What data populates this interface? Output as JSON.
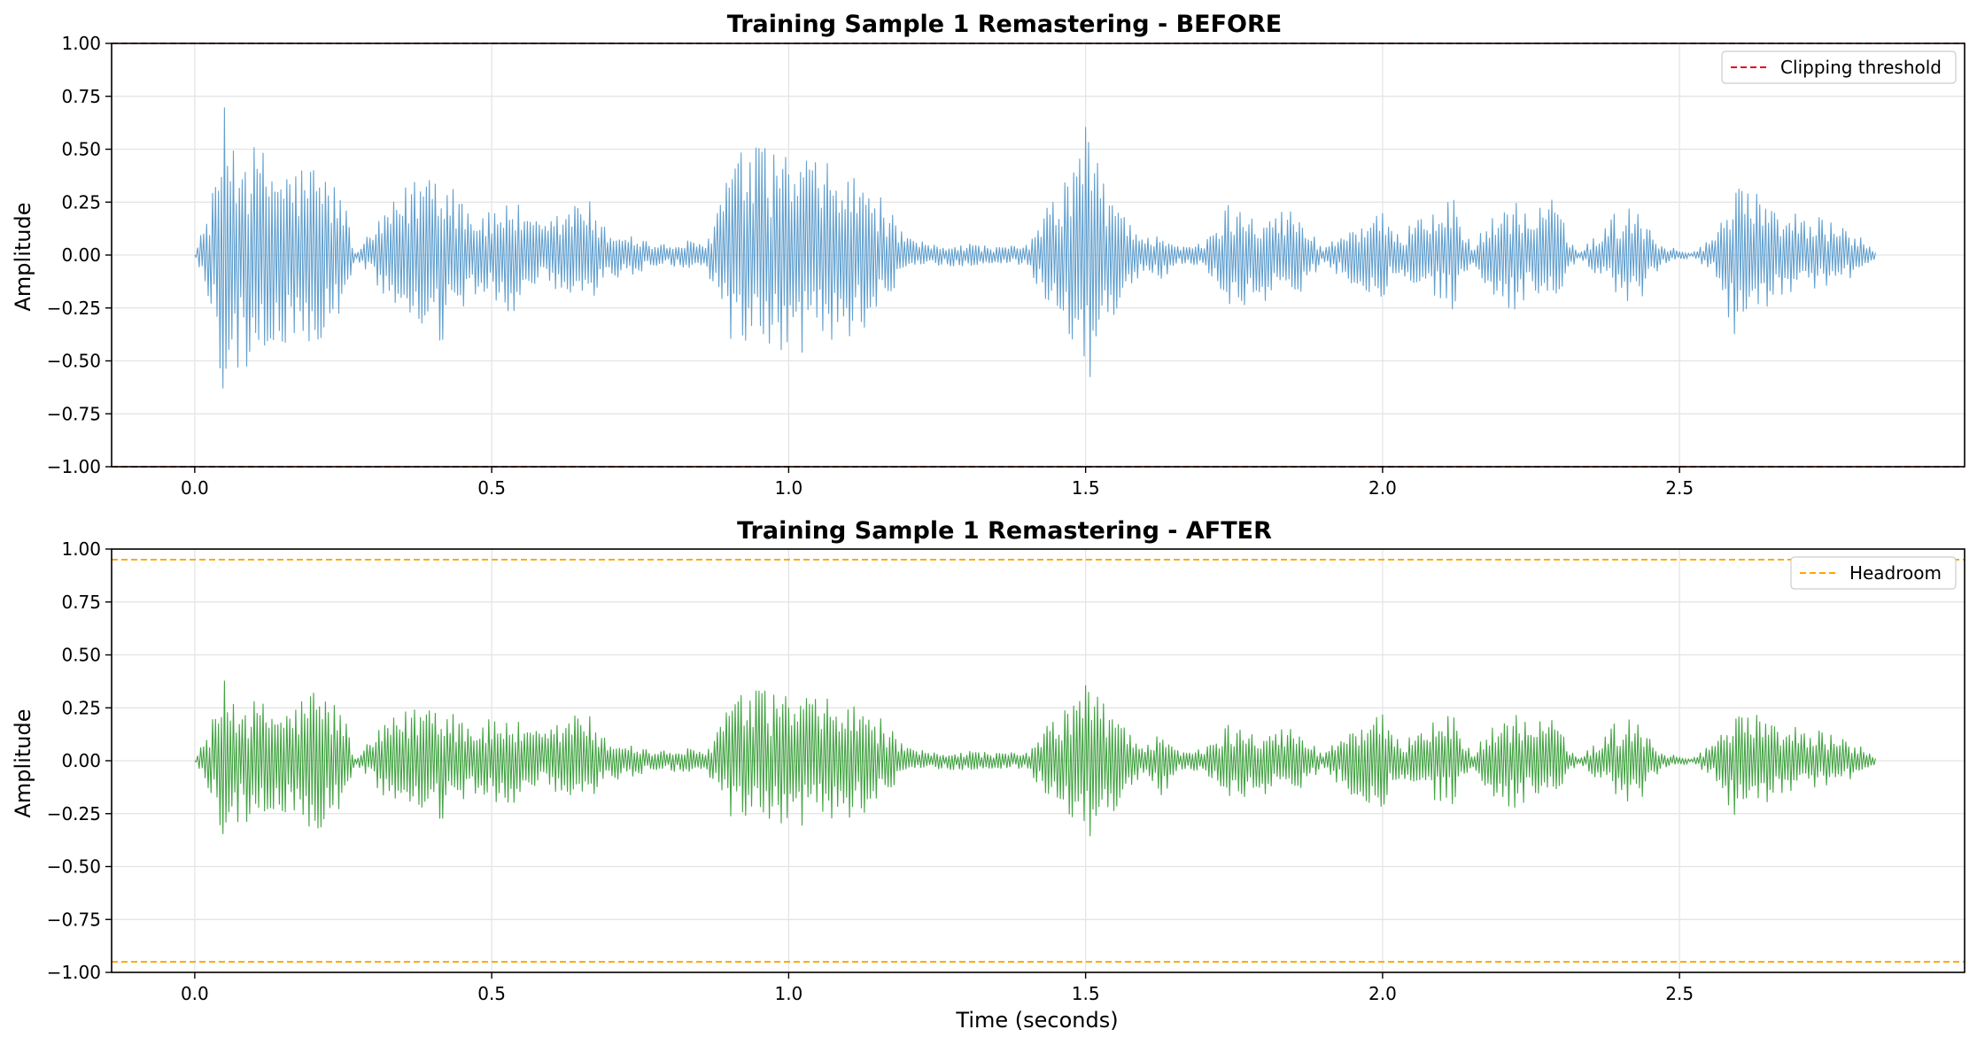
{
  "chart_data": [
    {
      "type": "line",
      "title": "Training Sample 1 Remastering - BEFORE",
      "xlabel": "",
      "ylabel": "Amplitude",
      "xlim": [
        -0.14,
        2.98
      ],
      "ylim": [
        -1.0,
        1.0
      ],
      "xticks": [
        0.0,
        0.5,
        1.0,
        1.5,
        2.0,
        2.5
      ],
      "xtick_labels": [
        "0.0",
        "0.5",
        "1.0",
        "1.5",
        "2.0",
        "2.5"
      ],
      "yticks": [
        -1.0,
        -0.75,
        -0.5,
        -0.25,
        0.0,
        0.25,
        0.5,
        0.75,
        1.0
      ],
      "ytick_labels": [
        "−1.00",
        "−0.75",
        "−0.50",
        "−0.25",
        "0.00",
        "0.25",
        "0.50",
        "0.75",
        "1.00"
      ],
      "grid": true,
      "legend_position": "top-right",
      "series": [
        {
          "kind": "waveform",
          "color": "#5b9bcb",
          "envelope_t": [
            0.0,
            0.03,
            0.05,
            0.08,
            0.12,
            0.16,
            0.2,
            0.25,
            0.27,
            0.32,
            0.36,
            0.4,
            0.44,
            0.47,
            0.5,
            0.53,
            0.56,
            0.59,
            0.62,
            0.64,
            0.66,
            0.68,
            0.71,
            0.74,
            0.77,
            0.8,
            0.83,
            0.86,
            0.9,
            0.92,
            0.95,
            1.0,
            1.05,
            1.1,
            1.15,
            1.2,
            1.25,
            1.3,
            1.35,
            1.4,
            1.45,
            1.48,
            1.5,
            1.53,
            1.56,
            1.6,
            1.63,
            1.66,
            1.7,
            1.74,
            1.8,
            1.85,
            1.9,
            1.95,
            2.0,
            2.03,
            2.06,
            2.09,
            2.12,
            2.15,
            2.19,
            2.22,
            2.25,
            2.28,
            2.33,
            2.39,
            2.43,
            2.47,
            2.52,
            2.56,
            2.6,
            2.64,
            2.68,
            2.72,
            2.76,
            2.8,
            2.83
          ],
          "envelope_amp": [
            0.0,
            0.3,
            0.7,
            0.55,
            0.5,
            0.42,
            0.45,
            0.3,
            0.01,
            0.2,
            0.35,
            0.48,
            0.35,
            0.22,
            0.2,
            0.3,
            0.18,
            0.15,
            0.22,
            0.26,
            0.3,
            0.15,
            0.12,
            0.1,
            0.06,
            0.05,
            0.07,
            0.05,
            0.45,
            0.5,
            0.52,
            0.5,
            0.45,
            0.4,
            0.3,
            0.08,
            0.05,
            0.06,
            0.04,
            0.05,
            0.3,
            0.45,
            0.68,
            0.35,
            0.25,
            0.08,
            0.12,
            0.04,
            0.06,
            0.25,
            0.22,
            0.22,
            0.04,
            0.15,
            0.2,
            0.08,
            0.25,
            0.2,
            0.28,
            0.05,
            0.2,
            0.28,
            0.18,
            0.3,
            0.01,
            0.2,
            0.25,
            0.05,
            0.01,
            0.1,
            0.45,
            0.25,
            0.22,
            0.2,
            0.15,
            0.1,
            0.02
          ],
          "sample_rate": 400
        }
      ],
      "reference_lines": [
        {
          "name": "Clipping threshold",
          "values": [
            1.0,
            -1.0
          ],
          "color": "#e8000b",
          "style": "dashed"
        }
      ]
    },
    {
      "type": "line",
      "title": "Training Sample 1 Remastering - AFTER",
      "xlabel": "Time (seconds)",
      "ylabel": "Amplitude",
      "xlim": [
        -0.14,
        2.98
      ],
      "ylim": [
        -1.0,
        1.0
      ],
      "xticks": [
        0.0,
        0.5,
        1.0,
        1.5,
        2.0,
        2.5
      ],
      "xtick_labels": [
        "0.0",
        "0.5",
        "1.0",
        "1.5",
        "2.0",
        "2.5"
      ],
      "yticks": [
        -1.0,
        -0.75,
        -0.5,
        -0.25,
        0.0,
        0.25,
        0.5,
        0.75,
        1.0
      ],
      "ytick_labels": [
        "−1.00",
        "−0.75",
        "−0.50",
        "−0.25",
        "0.00",
        "0.25",
        "0.50",
        "0.75",
        "1.00"
      ],
      "grid": true,
      "legend_position": "top-right",
      "series": [
        {
          "kind": "waveform",
          "color": "#3a9e3a",
          "envelope_t": [
            0.0,
            0.03,
            0.05,
            0.08,
            0.12,
            0.16,
            0.2,
            0.25,
            0.27,
            0.32,
            0.36,
            0.4,
            0.44,
            0.47,
            0.5,
            0.53,
            0.56,
            0.59,
            0.62,
            0.64,
            0.66,
            0.68,
            0.71,
            0.74,
            0.77,
            0.8,
            0.83,
            0.86,
            0.9,
            0.92,
            0.95,
            1.0,
            1.05,
            1.1,
            1.15,
            1.2,
            1.25,
            1.3,
            1.35,
            1.4,
            1.45,
            1.48,
            1.5,
            1.53,
            1.56,
            1.6,
            1.63,
            1.66,
            1.7,
            1.74,
            1.8,
            1.85,
            1.9,
            1.95,
            2.0,
            2.03,
            2.06,
            2.09,
            2.12,
            2.15,
            2.19,
            2.22,
            2.25,
            2.28,
            2.33,
            2.39,
            2.43,
            2.47,
            2.52,
            2.56,
            2.6,
            2.64,
            2.68,
            2.72,
            2.76,
            2.8,
            2.83
          ],
          "envelope_amp": [
            0.0,
            0.2,
            0.38,
            0.3,
            0.28,
            0.25,
            0.36,
            0.25,
            0.01,
            0.18,
            0.25,
            0.32,
            0.25,
            0.18,
            0.2,
            0.22,
            0.15,
            0.14,
            0.2,
            0.24,
            0.25,
            0.12,
            0.1,
            0.08,
            0.05,
            0.05,
            0.06,
            0.04,
            0.3,
            0.32,
            0.34,
            0.33,
            0.3,
            0.28,
            0.22,
            0.06,
            0.04,
            0.05,
            0.04,
            0.04,
            0.22,
            0.3,
            0.4,
            0.28,
            0.22,
            0.06,
            0.18,
            0.04,
            0.06,
            0.18,
            0.16,
            0.16,
            0.04,
            0.18,
            0.22,
            0.08,
            0.18,
            0.2,
            0.22,
            0.04,
            0.18,
            0.24,
            0.18,
            0.22,
            0.01,
            0.18,
            0.22,
            0.04,
            0.01,
            0.1,
            0.3,
            0.2,
            0.18,
            0.16,
            0.12,
            0.08,
            0.02
          ],
          "sample_rate": 400
        }
      ],
      "reference_lines": [
        {
          "name": "Headroom",
          "values": [
            0.95,
            -0.95
          ],
          "color": "#ffa500",
          "style": "dashed"
        }
      ]
    }
  ]
}
